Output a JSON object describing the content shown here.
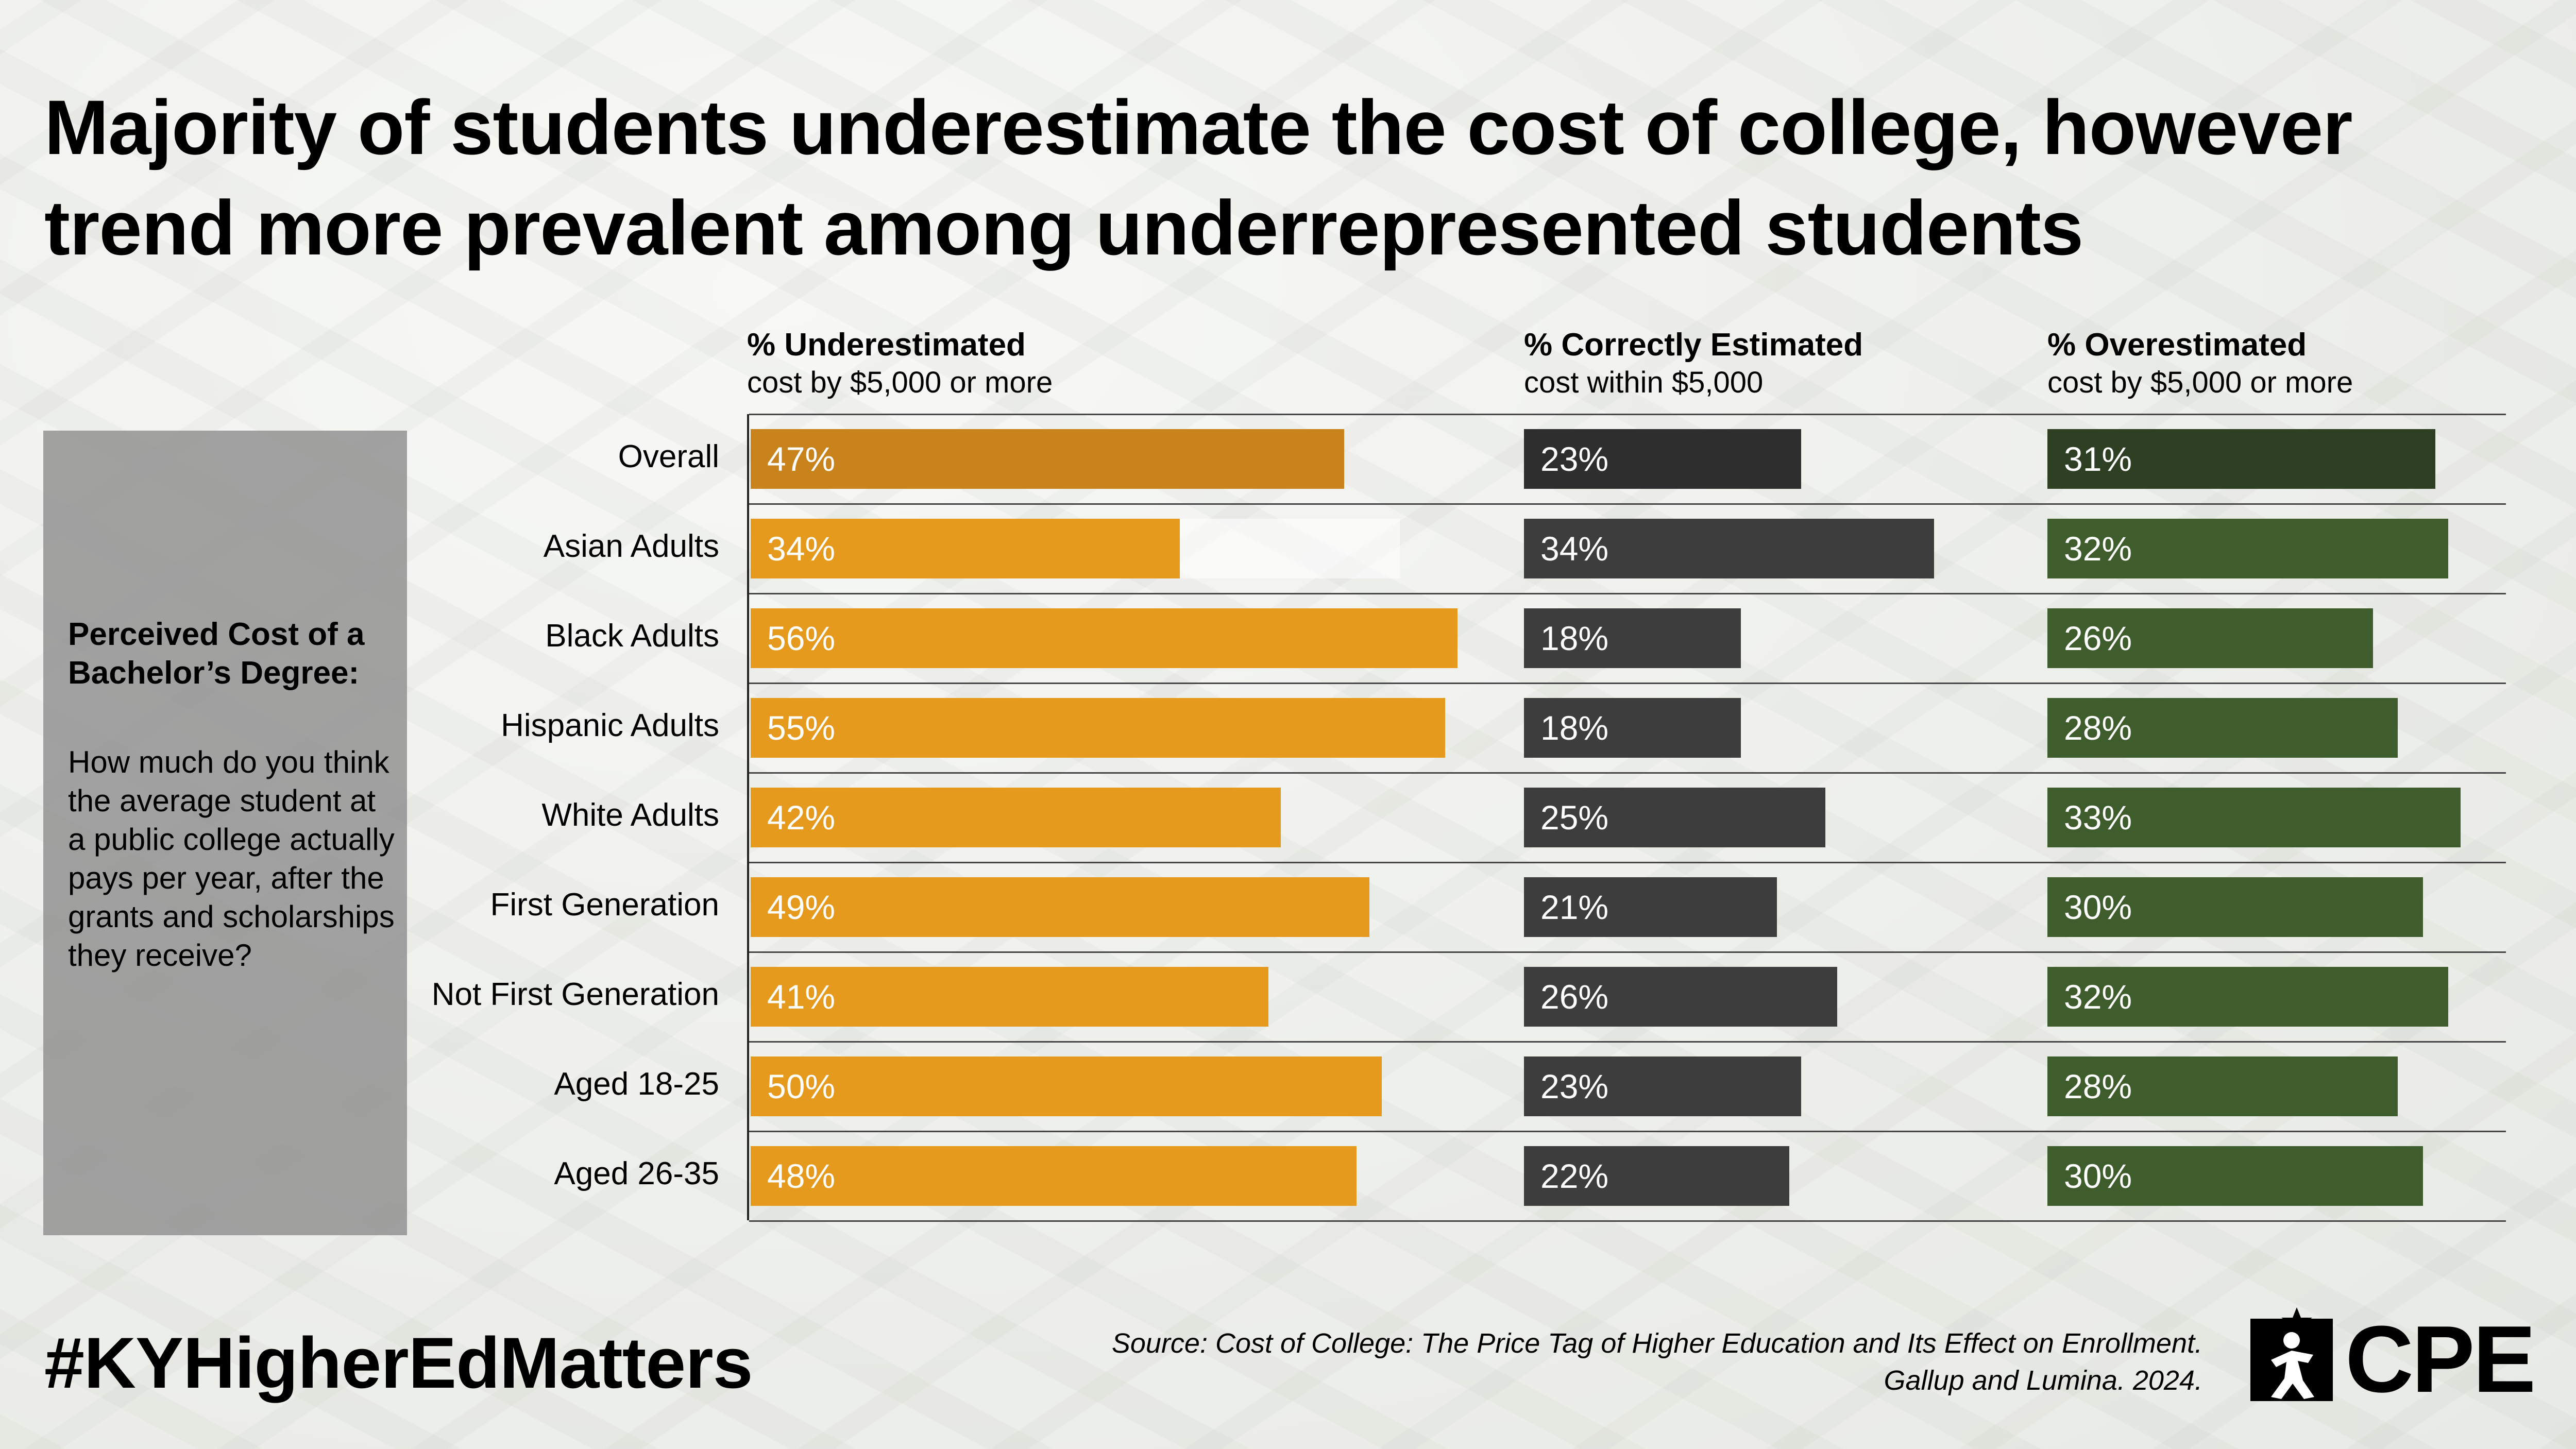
{
  "title": "Majority of students underestimate the cost of college, however trend more prevalent among underrepresented students",
  "columns": [
    {
      "heading": "% Underestimated",
      "subheading": "cost by $5,000 or more"
    },
    {
      "heading": "% Correctly Estimated",
      "subheading": "cost within $5,000"
    },
    {
      "heading": "% Overestimated",
      "subheading": "cost by $5,000 or more"
    }
  ],
  "side_panel": {
    "title": "Perceived Cost of a Bachelor’s Degree:",
    "question": "How much do you think the average student at a public college actually pays per year, after the grants and scholarships they receive?"
  },
  "chart_data": {
    "type": "bar",
    "orientation": "horizontal",
    "categories": [
      "Overall",
      "Asian Adults",
      "Black Adults",
      "Hispanic Adults",
      "White Adults",
      "First Generation",
      "Not First Generation",
      "Aged 18-25",
      "Aged 26-35"
    ],
    "series": [
      {
        "name": "% Underestimated",
        "values": [
          47,
          34,
          56,
          55,
          42,
          49,
          41,
          50,
          48
        ],
        "labels": [
          "47%",
          "34%",
          "56%",
          "55%",
          "42%",
          "49%",
          "41%",
          "50%",
          "48%"
        ]
      },
      {
        "name": "% Correctly Estimated",
        "values": [
          23,
          34,
          18,
          18,
          25,
          21,
          26,
          23,
          22
        ],
        "labels": [
          "23%",
          "34%",
          "18%",
          "18%",
          "25%",
          "21%",
          "26%",
          "23%",
          "22%"
        ]
      },
      {
        "name": "% Overestimated",
        "values": [
          31,
          32,
          26,
          28,
          33,
          30,
          32,
          28,
          30
        ],
        "labels": [
          "31%",
          "32%",
          "26%",
          "28%",
          "33%",
          "30%",
          "32%",
          "28%",
          "30%"
        ]
      }
    ],
    "unit": "%",
    "colors": {
      "underestimated": "#e59a1e",
      "underestimated_overall": "#c9831c",
      "correct": "#3d3d3d",
      "correct_overall": "#2e2e2e",
      "overestimated": "#3f5d2c",
      "overestimated_overall": "#2f3f24"
    }
  },
  "footer": {
    "hashtag": "#KYHigherEdMatters",
    "source_line1": "Source: Cost of College: The Price Tag of Higher Education and Its Effect on Enrollment.",
    "source_line2": "Gallup and Lumina. 2024.",
    "logo_text": "CPE"
  }
}
